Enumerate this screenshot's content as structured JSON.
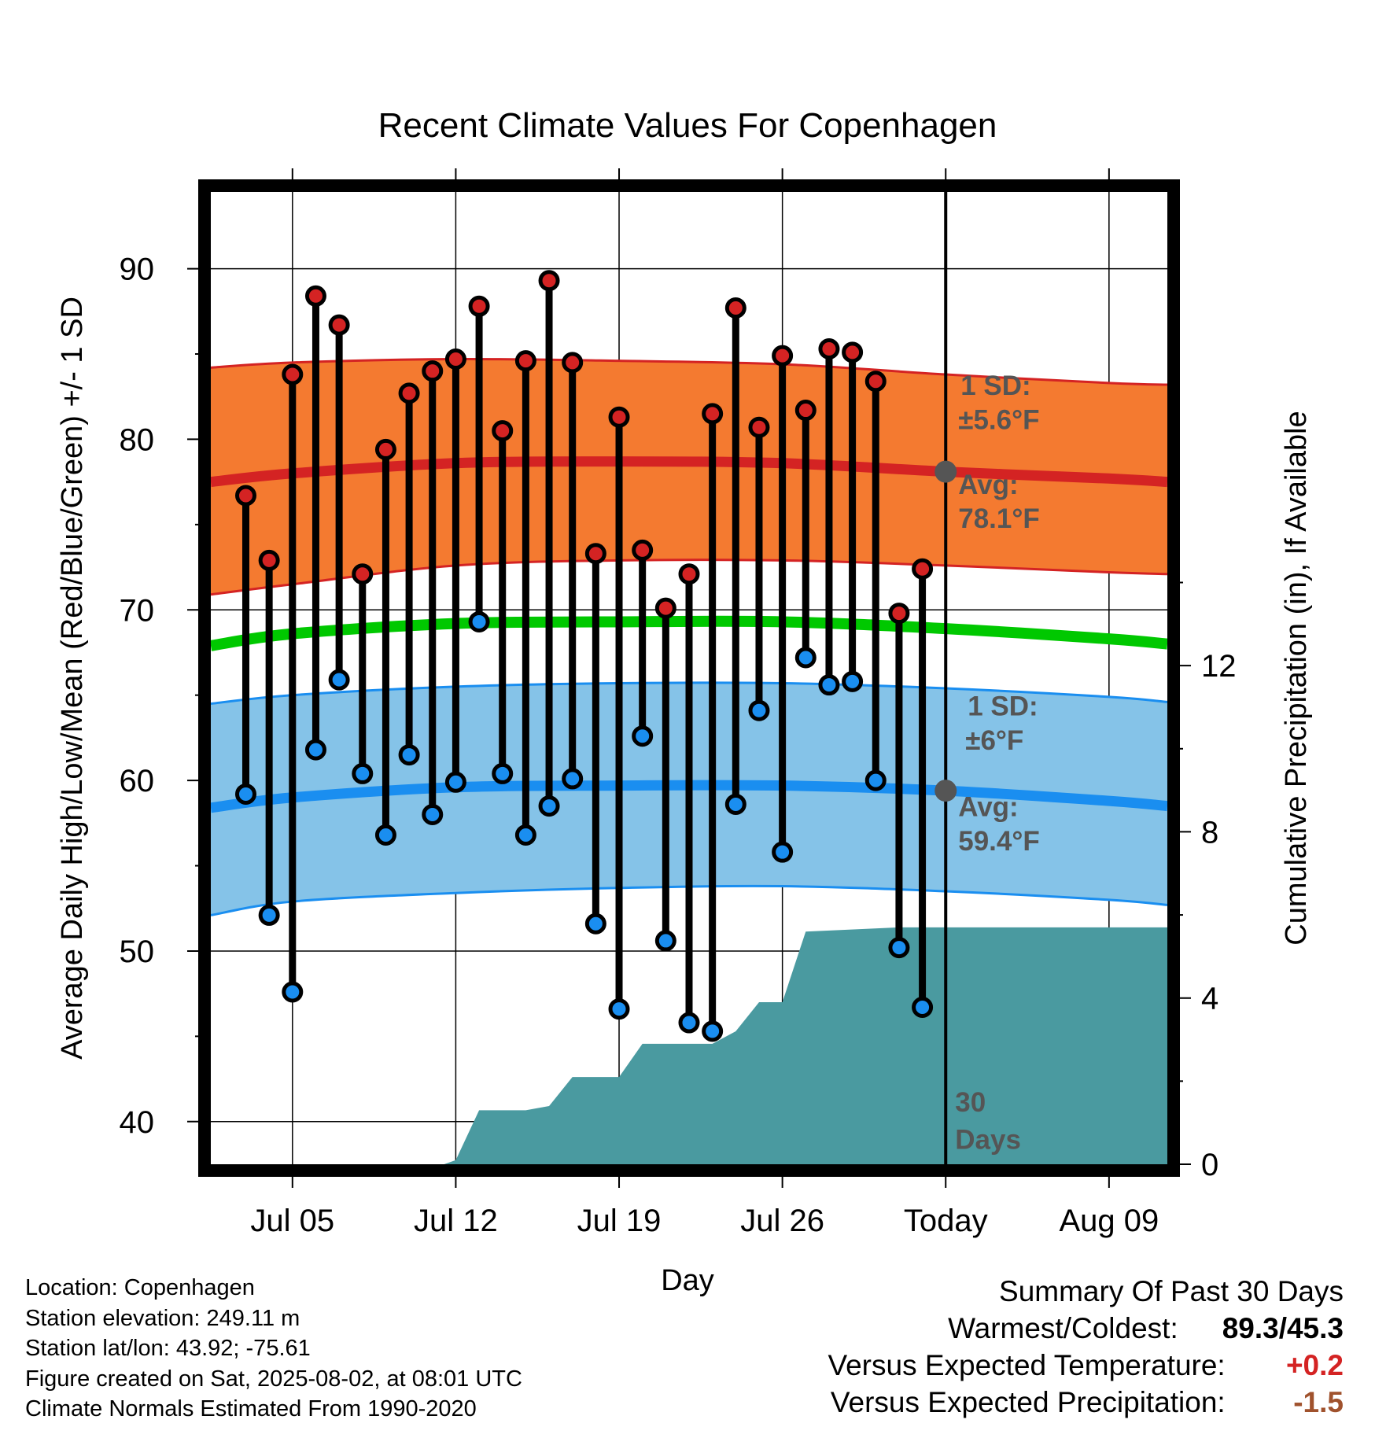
{
  "chart_data": {
    "type": "line",
    "title": "Recent Climate Values For Copenhagen",
    "xlabel": "Day",
    "ylabel": "Average Daily High/Low/Mean (Red/Blue/Green) +/- 1 SD",
    "y2label": "Cumulative Precipitation (in), If Available",
    "ylim": [
      37.5,
      94.5
    ],
    "y2lim": [
      0,
      23.4
    ],
    "yticks": [
      40,
      50,
      60,
      70,
      80,
      90
    ],
    "y2ticks": [
      0,
      4,
      8,
      12
    ],
    "x_ticks": [
      {
        "date": "2025-07-05",
        "label": "Jul 05"
      },
      {
        "date": "2025-07-12",
        "label": "Jul 12"
      },
      {
        "date": "2025-07-19",
        "label": "Jul 19"
      },
      {
        "date": "2025-07-26",
        "label": "Jul 26"
      },
      {
        "date": "2025-08-02",
        "label": "Today"
      },
      {
        "date": "2025-08-09",
        "label": "Aug 09"
      }
    ],
    "xlim": [
      "2025-07-01T12:00",
      "2025-08-11T12:00"
    ],
    "today": "2025-08-02",
    "daily": {
      "dates": [
        "2025-07-03",
        "2025-07-04",
        "2025-07-05",
        "2025-07-06",
        "2025-07-07",
        "2025-07-08",
        "2025-07-09",
        "2025-07-10",
        "2025-07-11",
        "2025-07-12",
        "2025-07-13",
        "2025-07-14",
        "2025-07-15",
        "2025-07-16",
        "2025-07-17",
        "2025-07-18",
        "2025-07-19",
        "2025-07-20",
        "2025-07-21",
        "2025-07-22",
        "2025-07-23",
        "2025-07-24",
        "2025-07-25",
        "2025-07-26",
        "2025-07-27",
        "2025-07-28",
        "2025-07-29",
        "2025-07-30",
        "2025-07-31",
        "2025-08-01"
      ],
      "highs": [
        76.7,
        72.9,
        83.8,
        88.4,
        86.7,
        72.1,
        79.4,
        82.7,
        84.0,
        84.7,
        87.8,
        80.5,
        84.6,
        89.3,
        84.5,
        73.3,
        81.3,
        73.5,
        70.1,
        72.1,
        81.5,
        87.7,
        80.7,
        84.9,
        81.7,
        85.3,
        85.1,
        83.4,
        69.8,
        72.4
      ],
      "lows": [
        59.2,
        52.1,
        47.6,
        61.8,
        65.9,
        60.4,
        56.8,
        61.5,
        58.0,
        59.9,
        69.3,
        60.4,
        56.8,
        58.5,
        60.1,
        51.6,
        46.6,
        62.6,
        50.6,
        45.8,
        45.3,
        58.6,
        64.1,
        55.8,
        67.2,
        65.6,
        65.8,
        60.0,
        50.2,
        46.7
      ]
    },
    "normals": {
      "dates": [
        "2025-07-01T12:00",
        "2025-07-05",
        "2025-07-12",
        "2025-07-19",
        "2025-07-26",
        "2025-08-02",
        "2025-08-09",
        "2025-08-11T12:00"
      ],
      "high_avg": [
        77.5,
        78.0,
        78.6,
        78.7,
        78.6,
        78.1,
        77.7,
        77.5
      ],
      "high_upper": [
        84.2,
        84.5,
        84.7,
        84.6,
        84.4,
        83.8,
        83.3,
        83.2
      ],
      "high_lower": [
        70.9,
        71.5,
        72.6,
        72.9,
        72.9,
        72.6,
        72.2,
        72.1
      ],
      "mean_avg": [
        67.9,
        68.6,
        69.2,
        69.3,
        69.3,
        68.9,
        68.3,
        68.0
      ],
      "low_avg": [
        58.4,
        59.0,
        59.6,
        59.7,
        59.7,
        59.4,
        58.8,
        58.5
      ],
      "low_upper": [
        64.5,
        65.0,
        65.5,
        65.7,
        65.7,
        65.4,
        64.9,
        64.6
      ],
      "low_lower": [
        52.1,
        52.9,
        53.4,
        53.7,
        53.8,
        53.5,
        53.0,
        52.7
      ]
    },
    "precip_cumulative": {
      "dates": [
        "2025-07-01T12:00",
        "2025-07-11T12:00",
        "2025-07-12",
        "2025-07-13",
        "2025-07-15",
        "2025-07-16",
        "2025-07-17",
        "2025-07-19",
        "2025-07-20",
        "2025-07-23",
        "2025-07-24",
        "2025-07-25",
        "2025-07-26",
        "2025-07-27",
        "2025-07-31",
        "2025-08-02",
        "2025-08-11T12:00"
      ],
      "values": [
        0.0,
        0.0,
        0.1,
        1.3,
        1.3,
        1.4,
        2.1,
        2.1,
        2.9,
        2.9,
        3.2,
        3.9,
        3.9,
        5.6,
        5.7,
        5.7,
        5.7
      ]
    },
    "annotations": {
      "high_sd_title": "1 SD:",
      "high_sd_value": "±5.6°F",
      "high_avg_title": "Avg:",
      "high_avg_value": "78.1°F",
      "low_sd_title": "1 SD:",
      "low_sd_value": "±6°F",
      "low_avg_title": "Avg:",
      "low_avg_value": "59.4°F",
      "precip_title": "30",
      "precip_sub": "Days"
    },
    "grid": true,
    "colors": {
      "high_band": "#f47a30",
      "high_line": "#d42323",
      "low_band": "#85c3e8",
      "low_line": "#1a8ef0",
      "mean_line": "#00c800",
      "precip": "#4a9aa0",
      "high_marker": "#d42323",
      "low_marker": "#1a8ef0",
      "today_marker": "#555555"
    }
  },
  "footer": {
    "location": "Location: Copenhagen",
    "elevation": "Station elevation: 249.11 m",
    "latlon": "Station lat/lon: 43.92; -75.61",
    "created": "Figure created on Sat, 2025-08-02, at 08:01 UTC",
    "normals": "Climate Normals Estimated From 1990-2020"
  },
  "summary": {
    "heading": "Summary Of Past 30 Days",
    "warm_cold_label": "Warmest/Coldest:",
    "warm_cold_value": "89.3/45.3",
    "temp_label": "Versus Expected Temperature:",
    "temp_value": "+0.2",
    "temp_color": "#d42323",
    "precip_label": "Versus Expected Precipitation:",
    "precip_value": "-1.5",
    "precip_color": "#a0522d"
  }
}
